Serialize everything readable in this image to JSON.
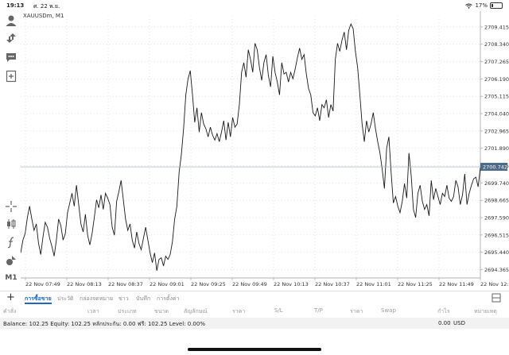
{
  "status_bar": {
    "time": "19:13",
    "date": "ศ. 22 พ.ย.",
    "battery": "17%"
  },
  "toolbar": {
    "timeframe_label": "M1"
  },
  "chart": {
    "symbol_label": "XAUUSDm, M1",
    "current_price_label": "2700.742"
  },
  "chart_data": {
    "type": "line",
    "symbol": "XAUUSDm",
    "timeframe": "M1",
    "x_labels": [
      "22 Nov 07:49",
      "22 Nov 08:13",
      "22 Nov 08:37",
      "22 Nov 09:01",
      "22 Nov 09:25",
      "22 Nov 09:49",
      "22 Nov 10:13",
      "22 Nov 10:37",
      "22 Nov 11:01",
      "22 Nov 11:25",
      "22 Nov 11:49",
      "22 Nov 12:13"
    ],
    "y_ticks": [
      "2709.415",
      "2708.340",
      "2707.265",
      "2706.190",
      "2705.115",
      "2704.040",
      "2702.965",
      "2701.890",
      "2700.815",
      "2699.740",
      "2698.665",
      "2697.590",
      "2696.515",
      "2695.440",
      "2694.365"
    ],
    "ylim": [
      2693.85,
      2710.1
    ],
    "current_price": 2700.742,
    "values": [
      2695.4,
      2696.2,
      2696.6,
      2697.6,
      2698.3,
      2697.5,
      2696.8,
      2697.2,
      2696.0,
      2695.3,
      2696.4,
      2697.3,
      2697.0,
      2696.3,
      2695.8,
      2695.2,
      2696.2,
      2697.5,
      2697.1,
      2696.2,
      2696.6,
      2697.9,
      2698.5,
      2699.1,
      2698.3,
      2699.6,
      2698.4,
      2697.2,
      2696.7,
      2697.8,
      2696.5,
      2695.9,
      2696.6,
      2697.6,
      2698.7,
      2698.2,
      2699.0,
      2698.1,
      2699.1,
      2698.8,
      2698.4,
      2697.0,
      2696.5,
      2698.6,
      2699.2,
      2699.9,
      2698.7,
      2697.5,
      2696.8,
      2697.2,
      2696.2,
      2695.7,
      2696.7,
      2696.0,
      2695.6,
      2696.3,
      2697.0,
      2696.2,
      2695.4,
      2694.8,
      2695.4,
      2694.3,
      2695.0,
      2695.1,
      2694.6,
      2695.2,
      2695.0,
      2695.3,
      2696.1,
      2697.5,
      2698.3,
      2700.4,
      2701.5,
      2703.1,
      2705.2,
      2706.2,
      2706.7,
      2705.2,
      2703.5,
      2704.4,
      2702.9,
      2704.1,
      2703.4,
      2703.1,
      2702.6,
      2703.2,
      2702.7,
      2702.4,
      2702.8,
      2702.3,
      2702.9,
      2703.6,
      2702.4,
      2703.5,
      2702.6,
      2703.8,
      2703.2,
      2703.4,
      2704.6,
      2706.6,
      2707.2,
      2706.3,
      2708.0,
      2707.4,
      2706.6,
      2708.4,
      2708.0,
      2706.9,
      2706.1,
      2707.2,
      2707.7,
      2706.4,
      2705.7,
      2707.6,
      2706.6,
      2706.0,
      2705.2,
      2707.2,
      2706.5,
      2706.6,
      2706.0,
      2706.6,
      2706.2,
      2706.8,
      2707.5,
      2708.1,
      2707.4,
      2707.7,
      2706.5,
      2705.6,
      2705.2,
      2704.1,
      2703.9,
      2704.4,
      2703.6,
      2704.6,
      2704.4,
      2704.9,
      2703.8,
      2704.6,
      2704.2,
      2707.4,
      2708.4,
      2707.9,
      2708.6,
      2709.1,
      2708.0,
      2709.2,
      2709.6,
      2709.3,
      2707.9,
      2706.9,
      2705.2,
      2703.4,
      2702.3,
      2703.6,
      2702.9,
      2703.4,
      2704.1,
      2703.1,
      2702.3,
      2701.6,
      2700.6,
      2699.4,
      2701.9,
      2702.6,
      2700.4,
      2698.5,
      2698.9,
      2698.3,
      2697.9,
      2698.6,
      2699.7,
      2698.8,
      2701.6,
      2700.2,
      2698.1,
      2697.6,
      2699.1,
      2699.6,
      2698.6,
      2698.1,
      2698.4,
      2697.7,
      2699.9,
      2698.7,
      2699.4,
      2698.9,
      2698.4,
      2699.1,
      2698.9,
      2699.6,
      2698.8,
      2698.6,
      2698.9,
      2699.9,
      2699.5,
      2698.4,
      2699.0,
      2700.3,
      2698.4,
      2699.1,
      2699.6,
      2700.0,
      2700.1,
      2699.5,
      2700.7
    ]
  },
  "tabs": {
    "trade": "การซื้อขาย",
    "history": "ประวัติ",
    "mailbox": "กล่องจดหมาย",
    "news": "ข่าว",
    "journal": "บันทึก",
    "settings": "การตั้งค่า"
  },
  "table_headers": {
    "order": "คำสั่ง",
    "time": "เวลา",
    "type": "ประเภท",
    "volume": "ขนาด",
    "symbol": "สัญลักษณ์",
    "price": "ราคา",
    "sl": "S/L",
    "tp": "T/P",
    "price2": "ราคา",
    "swap": "Swap",
    "profit": "กำไร",
    "comment": "หมายเหตุ"
  },
  "summary": {
    "balance_line": "Balance: 102.25 Equity: 102.25 หลักประกัน: 0.00 ฟรี: 102.25 Level: 0.00%",
    "profit": "0.00",
    "currency": "USD"
  }
}
